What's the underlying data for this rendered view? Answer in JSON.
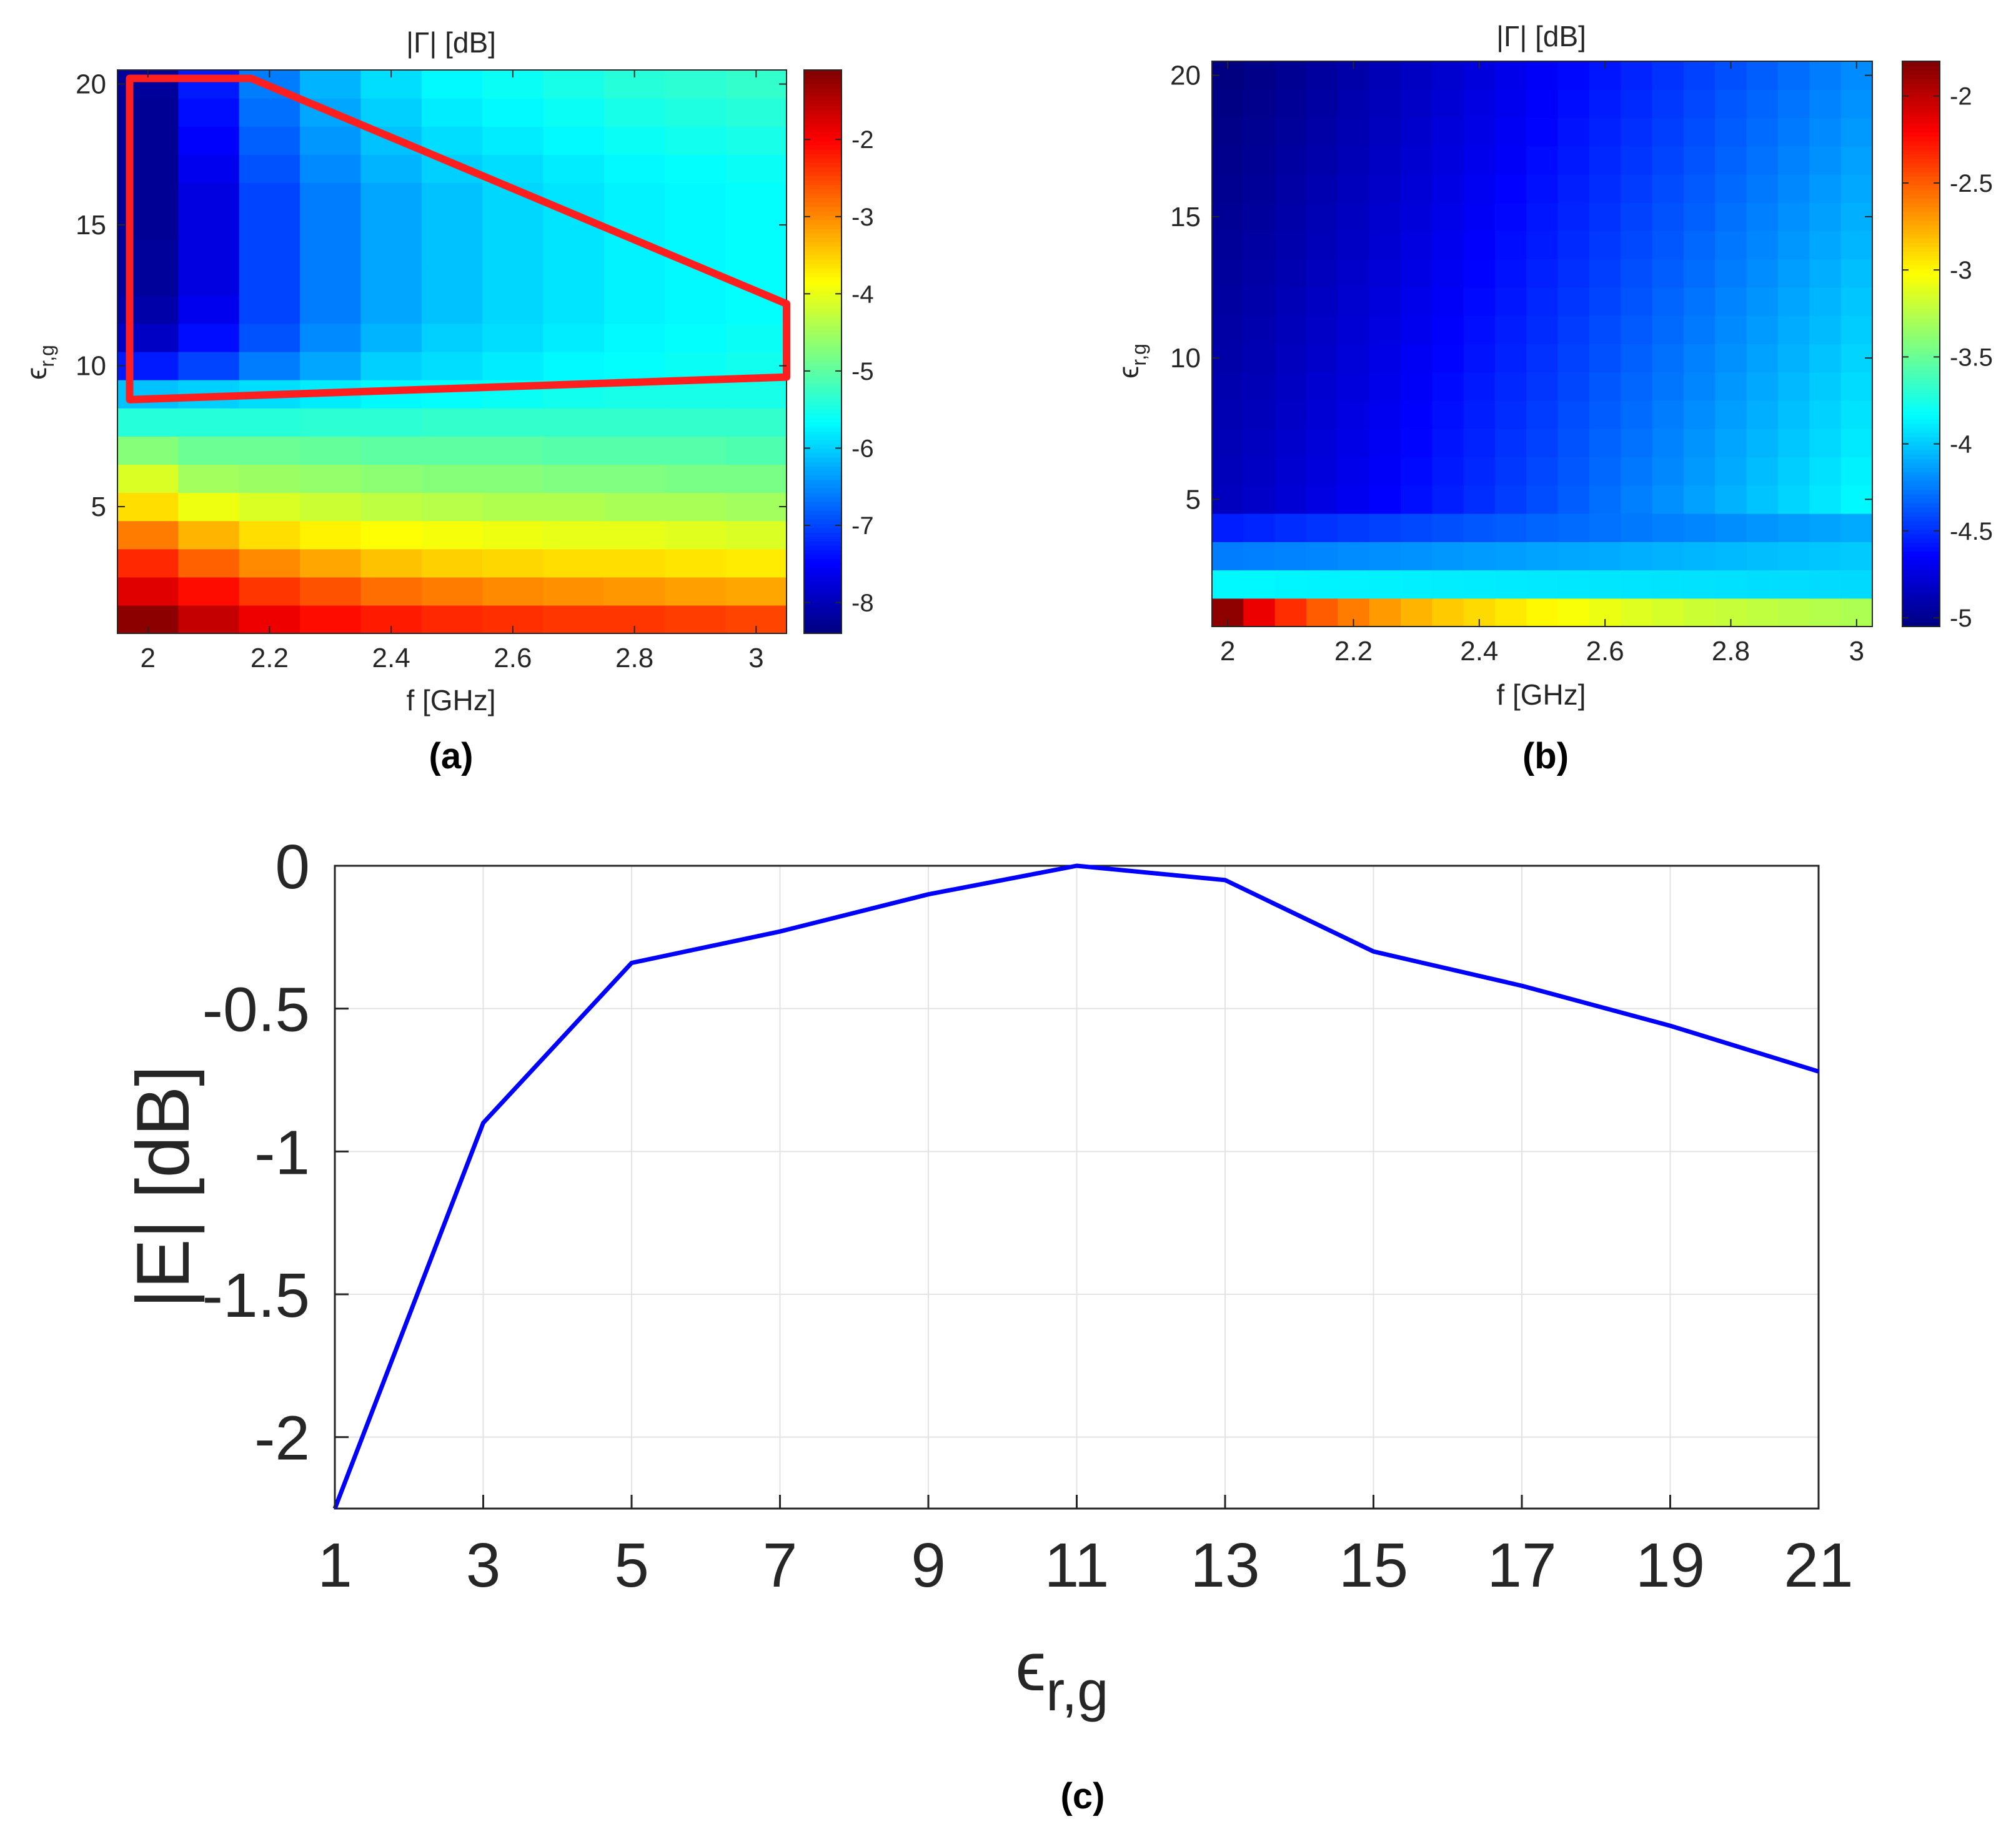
{
  "chart_data": [
    {
      "id": "a",
      "type": "heatmap",
      "panel_label": "(a)",
      "title": "|Γ| [dB]",
      "xlabel": "f [GHz]",
      "ylabel_base": "ϵ",
      "ylabel_sub": "r,g",
      "x_range": [
        1.95,
        3.05
      ],
      "y_range": [
        0.5,
        20.5
      ],
      "x_ticks": [
        2,
        2.2,
        2.4,
        2.6,
        2.8,
        3
      ],
      "x_tick_labels": [
        "2",
        "2.2",
        "2.4",
        "2.6",
        "2.8",
        "3"
      ],
      "y_ticks": [
        5,
        10,
        15,
        20
      ],
      "y_tick_labels": [
        "5",
        "10",
        "15",
        "20"
      ],
      "colormap": "jet",
      "clim": [
        -8.4,
        -1.1
      ],
      "colorbar_ticks": [
        -8,
        -7,
        -6,
        -5,
        -4,
        -3,
        -2
      ],
      "colorbar_tick_labels": [
        "-8",
        "-7",
        "-6",
        "-5",
        "-4",
        "-3",
        "-2"
      ],
      "x": [
        2.0,
        2.1,
        2.2,
        2.3,
        2.4,
        2.5,
        2.6,
        2.7,
        2.8,
        2.9,
        3.0
      ],
      "y": [
        1,
        2,
        3,
        4,
        5,
        6,
        7,
        8,
        9,
        10,
        11,
        12,
        13,
        14,
        15,
        16,
        17,
        18,
        19,
        20
      ],
      "z": [
        [
          -1.2,
          -1.6,
          -1.9,
          -2.1,
          -2.2,
          -2.3,
          -2.35,
          -2.4,
          -2.4,
          -2.45,
          -2.5
        ],
        [
          -1.8,
          -2.1,
          -2.4,
          -2.6,
          -2.8,
          -2.9,
          -3.0,
          -3.05,
          -3.1,
          -3.15,
          -3.2
        ],
        [
          -2.3,
          -2.7,
          -3.0,
          -3.2,
          -3.4,
          -3.5,
          -3.55,
          -3.6,
          -3.6,
          -3.65,
          -3.7
        ],
        [
          -2.9,
          -3.3,
          -3.6,
          -3.75,
          -3.85,
          -3.9,
          -3.95,
          -4.0,
          -4.0,
          -4.05,
          -4.1
        ],
        [
          -3.6,
          -3.95,
          -4.1,
          -4.2,
          -4.3,
          -4.35,
          -4.4,
          -4.4,
          -4.45,
          -4.45,
          -4.5
        ],
        [
          -4.1,
          -4.5,
          -4.55,
          -4.6,
          -4.65,
          -4.7,
          -4.7,
          -4.75,
          -4.75,
          -4.8,
          -4.8
        ],
        [
          -4.7,
          -4.9,
          -4.9,
          -4.95,
          -5.0,
          -5.0,
          -5.0,
          -5.05,
          -5.05,
          -5.05,
          -5.1
        ],
        [
          -5.4,
          -5.4,
          -5.4,
          -5.35,
          -5.35,
          -5.3,
          -5.3,
          -5.3,
          -5.3,
          -5.3,
          -5.3
        ],
        [
          -6.1,
          -6.0,
          -5.9,
          -5.8,
          -5.7,
          -5.65,
          -5.6,
          -5.55,
          -5.5,
          -5.5,
          -5.5
        ],
        [
          -7.3,
          -7.0,
          -6.6,
          -6.3,
          -6.0,
          -5.9,
          -5.8,
          -5.7,
          -5.65,
          -5.6,
          -5.55
        ],
        [
          -7.9,
          -7.4,
          -6.9,
          -6.5,
          -6.2,
          -6.0,
          -5.9,
          -5.8,
          -5.7,
          -5.65,
          -5.6
        ],
        [
          -8.1,
          -7.6,
          -7.0,
          -6.6,
          -6.3,
          -6.1,
          -5.95,
          -5.85,
          -5.75,
          -5.7,
          -5.65
        ],
        [
          -8.2,
          -7.7,
          -7.0,
          -6.6,
          -6.3,
          -6.1,
          -5.95,
          -5.85,
          -5.75,
          -5.7,
          -5.65
        ],
        [
          -8.2,
          -7.7,
          -7.0,
          -6.6,
          -6.3,
          -6.1,
          -5.95,
          -5.85,
          -5.75,
          -5.7,
          -5.65
        ],
        [
          -8.25,
          -7.7,
          -7.0,
          -6.6,
          -6.3,
          -6.1,
          -5.95,
          -5.85,
          -5.75,
          -5.7,
          -5.65
        ],
        [
          -8.25,
          -7.7,
          -7.0,
          -6.6,
          -6.3,
          -6.1,
          -5.95,
          -5.85,
          -5.75,
          -5.7,
          -5.65
        ],
        [
          -8.25,
          -7.6,
          -6.9,
          -6.5,
          -6.2,
          -6.0,
          -5.9,
          -5.8,
          -5.7,
          -5.65,
          -5.6
        ],
        [
          -8.25,
          -7.5,
          -6.8,
          -6.4,
          -6.1,
          -5.9,
          -5.8,
          -5.7,
          -5.6,
          -5.55,
          -5.5
        ],
        [
          -8.25,
          -7.4,
          -6.7,
          -6.3,
          -6.0,
          -5.8,
          -5.7,
          -5.6,
          -5.5,
          -5.45,
          -5.4
        ],
        [
          -8.2,
          -7.3,
          -6.6,
          -6.2,
          -5.9,
          -5.7,
          -5.6,
          -5.5,
          -5.4,
          -5.35,
          -5.3
        ]
      ],
      "annotation": {
        "type": "polygon",
        "color": "#ff1f1f",
        "vertices": [
          [
            1.97,
            20.2
          ],
          [
            2.17,
            20.2
          ],
          [
            3.05,
            12.2
          ],
          [
            3.05,
            9.6
          ],
          [
            1.97,
            8.8
          ]
        ]
      }
    },
    {
      "id": "b",
      "type": "heatmap",
      "panel_label": "(b)",
      "title": "|Γ| [dB]",
      "xlabel": "f [GHz]",
      "ylabel_base": "ϵ",
      "ylabel_sub": "r,g",
      "x_range": [
        1.975,
        3.025
      ],
      "y_range": [
        0.5,
        20.5
      ],
      "x_ticks": [
        2,
        2.2,
        2.4,
        2.6,
        2.8,
        3
      ],
      "x_tick_labels": [
        "2",
        "2.2",
        "2.4",
        "2.6",
        "2.8",
        "3"
      ],
      "y_ticks": [
        5,
        10,
        15,
        20
      ],
      "y_tick_labels": [
        "5",
        "10",
        "15",
        "20"
      ],
      "colormap": "jet",
      "clim": [
        -5.05,
        -1.8
      ],
      "colorbar_ticks": [
        -5,
        -4.5,
        -4,
        -3.5,
        -3,
        -2.5,
        -2
      ],
      "colorbar_tick_labels": [
        "-5",
        "-4.5",
        "-4",
        "-3.5",
        "-3",
        "-2.5",
        "-2"
      ],
      "x": [
        2.0,
        2.05,
        2.1,
        2.15,
        2.2,
        2.25,
        2.3,
        2.35,
        2.4,
        2.45,
        2.5,
        2.55,
        2.6,
        2.65,
        2.7,
        2.75,
        2.8,
        2.85,
        2.9,
        2.95,
        3.0
      ],
      "y": [
        1,
        2,
        3,
        4,
        5,
        6,
        7,
        8,
        9,
        10,
        11,
        12,
        13,
        14,
        15,
        16,
        17,
        18,
        19,
        20
      ],
      "z_model": {
        "row1": [
          -1.85,
          -2.15,
          -2.35,
          -2.5,
          -2.6,
          -2.7,
          -2.78,
          -2.85,
          -2.9,
          -2.95,
          -3.0,
          -3.04,
          -3.08,
          -3.12,
          -3.15,
          -3.18,
          -3.2,
          -3.22,
          -3.24,
          -3.26,
          -3.28
        ],
        "row2_base": -3.85,
        "row3_base": -4.25,
        "row4_base": -4.55,
        "upper_left": -5.0,
        "upper_right": -4.0
      }
    },
    {
      "id": "c",
      "type": "line",
      "panel_label": "(c)",
      "title": "",
      "xlabel_base": "ϵ",
      "xlabel_sub": "r,g",
      "ylabel": "|E| [dB]",
      "x_range": [
        1,
        21
      ],
      "y_range": [
        -2.25,
        0
      ],
      "x_ticks": [
        1,
        3,
        5,
        7,
        9,
        11,
        13,
        15,
        17,
        19,
        21
      ],
      "x_tick_labels": [
        "1",
        "3",
        "5",
        "7",
        "9",
        "11",
        "13",
        "15",
        "17",
        "19",
        "21"
      ],
      "y_ticks": [
        0,
        -0.5,
        -1,
        -1.5,
        -2
      ],
      "y_tick_labels": [
        "0",
        "-0.5",
        "-1",
        "-1.5",
        "-2"
      ],
      "grid": true,
      "series": [
        {
          "name": "|E|",
          "color": "#0000ff",
          "x": [
            1,
            3,
            5,
            7,
            9,
            11,
            13,
            15,
            17,
            19,
            21
          ],
          "y": [
            -2.25,
            -0.9,
            -0.34,
            -0.23,
            -0.1,
            0,
            -0.05,
            -0.3,
            -0.42,
            -0.56,
            -0.72
          ]
        }
      ]
    }
  ]
}
